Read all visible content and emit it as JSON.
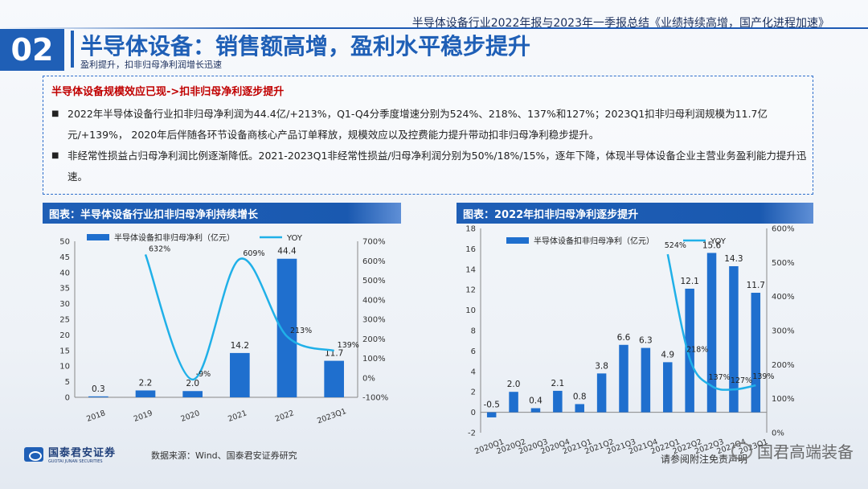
{
  "header": {
    "top_line": "半导体设备行业2022年报与2023年一季报总结《业绩持续高增，国产化进程加速》",
    "section_number": "02",
    "title": "半导体设备：销售额高增，盈利水平稳步提升",
    "subtitle": "盈利提升，扣非归母净利润增长迅速"
  },
  "summary_box": {
    "heading": "半导体设备规模效应已现->扣非归母净利逐步提升",
    "bullets": [
      "2022年半导体设备行业扣非归母净利润为44.4亿/+213%，Q1-Q4分季度增速分别为524%、218%、137%和127%；2023Q1扣非归母利润规模为11.7亿元/+139%， 2020年后伴随各环节设备商核心产品订单释放，规模效应以及控费能力提升带动扣非归母净利稳步提升。",
      "非经常性损益占归母净利润比例逐渐降低。2021-2023Q1非经常性损益/归母净利润分别为50%/18%/15%，逐年下降，体现半导体设备企业主营业务盈利能力提升迅速。"
    ],
    "bullet_marker": "■"
  },
  "chart_data": [
    {
      "type": "bar",
      "panel_title": "图表：半导体设备行业扣非归母净利持续增长",
      "categories": [
        "2018",
        "2019",
        "2020",
        "2021",
        "2022",
        "2023Q1"
      ],
      "series": [
        {
          "name": "半导体设备扣非归母净利（亿元）",
          "axis": "left",
          "values": [
            0.3,
            2.2,
            2.0,
            14.2,
            44.4,
            11.7
          ],
          "labels": [
            "0.3",
            "2.2",
            "2.0",
            "14.2",
            "44.4",
            "11.7"
          ]
        },
        {
          "name": "YOY",
          "type": "line",
          "axis": "right",
          "values": [
            null,
            632,
            -9,
            609,
            213,
            139
          ],
          "labels": [
            "",
            "632%",
            "-9%",
            "609%",
            "213%",
            "139%"
          ]
        }
      ],
      "ylim_left": [
        0,
        50
      ],
      "yticks_left": [
        "0",
        "5",
        "10",
        "15",
        "20",
        "25",
        "30",
        "35",
        "40",
        "45",
        "50"
      ],
      "ylim_right": [
        -100,
        700
      ],
      "yticks_right": [
        "-100%",
        "0%",
        "100%",
        "200%",
        "300%",
        "400%",
        "500%",
        "600%",
        "700%"
      ],
      "legend": "top"
    },
    {
      "type": "bar",
      "panel_title": "图表：2022年扣非归母净利逐步提升",
      "categories": [
        "2020Q1",
        "2020Q2",
        "2020Q3",
        "2020Q4",
        "2021Q1",
        "2021Q2",
        "2021Q3",
        "2021Q4",
        "2022Q1",
        "2022Q2",
        "2022Q3",
        "2022Q4",
        "2023Q1"
      ],
      "series": [
        {
          "name": "半导体设备扣非归母净利（亿元）",
          "axis": "left",
          "values": [
            -0.5,
            2.0,
            0.4,
            2.1,
            0.8,
            3.8,
            6.6,
            6.3,
            4.9,
            12.1,
            15.6,
            14.3,
            11.7
          ],
          "labels": [
            "-0.5",
            "2.0",
            "0.4",
            "2.1",
            "0.8",
            "3.8",
            "6.6",
            "6.3",
            "4.9",
            "12.1",
            "15.6",
            "14.3",
            "11.7"
          ]
        },
        {
          "name": "YOY",
          "type": "line",
          "axis": "right",
          "values": [
            null,
            null,
            null,
            null,
            null,
            null,
            null,
            null,
            524,
            218,
            137,
            127,
            139
          ],
          "labels": [
            "",
            "",
            "",
            "",
            "",
            "",
            "",
            "",
            "524%",
            "218%",
            "137%",
            "127%",
            "139%"
          ]
        }
      ],
      "ylim_left": [
        -2,
        18
      ],
      "yticks_left": [
        "-2",
        "0",
        "2",
        "4",
        "6",
        "8",
        "10",
        "12",
        "14",
        "16",
        "18"
      ],
      "ylim_right": [
        0,
        600
      ],
      "yticks_right": [
        "0%",
        "100%",
        "200%",
        "300%",
        "400%",
        "500%",
        "600%"
      ],
      "legend": "top"
    }
  ],
  "footer": {
    "logo_cn": "国泰君安证券",
    "logo_en": "GUOTAI JUNAN SECURITIES",
    "source": "数据来源：Wind、国泰君安证券研究",
    "watermark": "国君高端装备",
    "disclaimer": "请参阅附注免责声明"
  },
  "colors": {
    "accent": "#1f5fb6",
    "bar": "#1f6fce",
    "line": "#20b0e8",
    "heading_red": "#c00000"
  }
}
